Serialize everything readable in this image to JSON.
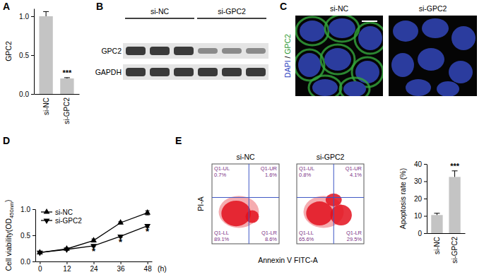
{
  "panel_labels": [
    "A",
    "B",
    "C",
    "D",
    "E"
  ],
  "blot": {
    "groups": [
      "si-NC",
      "si-GPC2"
    ],
    "proteins": [
      "GPC2",
      "GAPDH"
    ]
  },
  "image": {
    "titles": [
      "si-NC",
      "si-GPC2"
    ],
    "stain": [
      "DAPI",
      " / ",
      "GPC2"
    ]
  },
  "chart_data": [
    {
      "type": "bar",
      "y_label": "GPC2",
      "categories": [
        "si-NC",
        "si-GPC2"
      ],
      "values": [
        1.0,
        0.2
      ],
      "errors": [
        0.06,
        0.01
      ],
      "color": "#c4c4c4",
      "ylim": [
        0,
        1.1
      ],
      "yticks": [
        {
          "value": 0,
          "label": "0.0"
        },
        {
          "value": 0.5,
          "label": "0.5"
        },
        {
          "value": 1,
          "label": "1.0"
        }
      ],
      "annotations": [
        {
          "text": "***",
          "category": "si-GPC2"
        }
      ]
    },
    {
      "type": "line",
      "y_label": [
        "Cell viability(OD",
        "450nm",
        ")"
      ],
      "x_label": "(h)",
      "x": [
        0,
        12,
        24,
        36,
        48
      ],
      "xlim": [
        -2,
        50
      ],
      "xticks": [
        0,
        12,
        24,
        36,
        48
      ],
      "ylim": [
        0,
        1
      ],
      "yticks": [
        {
          "value": 0,
          "label": "0.0"
        },
        {
          "value": 0.5,
          "label": "0.5"
        },
        {
          "value": 1,
          "label": "1.0"
        }
      ],
      "legend": "upper left",
      "series": [
        {
          "name": "si-NC",
          "color": "#000000",
          "marker": "triangle-up",
          "values": [
            0.17,
            0.24,
            0.4,
            0.74,
            0.93
          ],
          "errors": [
            0.01,
            0.02,
            0.03,
            0.02,
            0.04
          ]
        },
        {
          "name": "si-GPC2",
          "color": "#000000",
          "marker": "triangle-down",
          "values": [
            0.17,
            0.23,
            0.3,
            0.48,
            0.68
          ],
          "errors": [
            0.01,
            0.01,
            0.02,
            0.02,
            0.03
          ]
        }
      ],
      "annotations": [
        {
          "text": "*",
          "x": 24,
          "y": 0.2
        },
        {
          "text": "*",
          "x": 36,
          "y": 0.38
        },
        {
          "text": "*",
          "x": 48,
          "y": 0.58
        }
      ]
    },
    {
      "type": "flow_cytometry",
      "x_label": "Annexin V FITC-A",
      "y_label": "PI-A",
      "color": "#e3101d",
      "panels": [
        {
          "title": "si-NC",
          "quadrants": [
            {
              "name": "Q1-UL",
              "value": 0.7,
              "label": "0.7%"
            },
            {
              "name": "Q1-UR",
              "value": 1.6,
              "label": "1.6%"
            },
            {
              "name": "Q1-LL",
              "value": 89.1,
              "label": "89.1%"
            },
            {
              "name": "Q1-LR",
              "value": 8.6,
              "label": "8.6%"
            }
          ]
        },
        {
          "title": "si-GPC2",
          "quadrants": [
            {
              "name": "Q1-UL",
              "value": 0.8,
              "label": "0.8%"
            },
            {
              "name": "Q1-UR",
              "value": 4.1,
              "label": "4.1%"
            },
            {
              "name": "Q1-LL",
              "value": 65.6,
              "label": "65.6%"
            },
            {
              "name": "Q1-LR",
              "value": 29.5,
              "label": "29.5%"
            }
          ]
        }
      ]
    },
    {
      "type": "bar",
      "y_label": "Apoptosis rate (%)",
      "categories": [
        "si-NC",
        "si-GPC2"
      ],
      "values": [
        10.5,
        32.5
      ],
      "errors": [
        1.0,
        3.5
      ],
      "color": "#c4c4c4",
      "ylim": [
        0,
        40
      ],
      "yticks": [
        0,
        10,
        20,
        30,
        40
      ],
      "annotations": [
        {
          "text": "***",
          "category": "si-GPC2"
        }
      ]
    }
  ]
}
